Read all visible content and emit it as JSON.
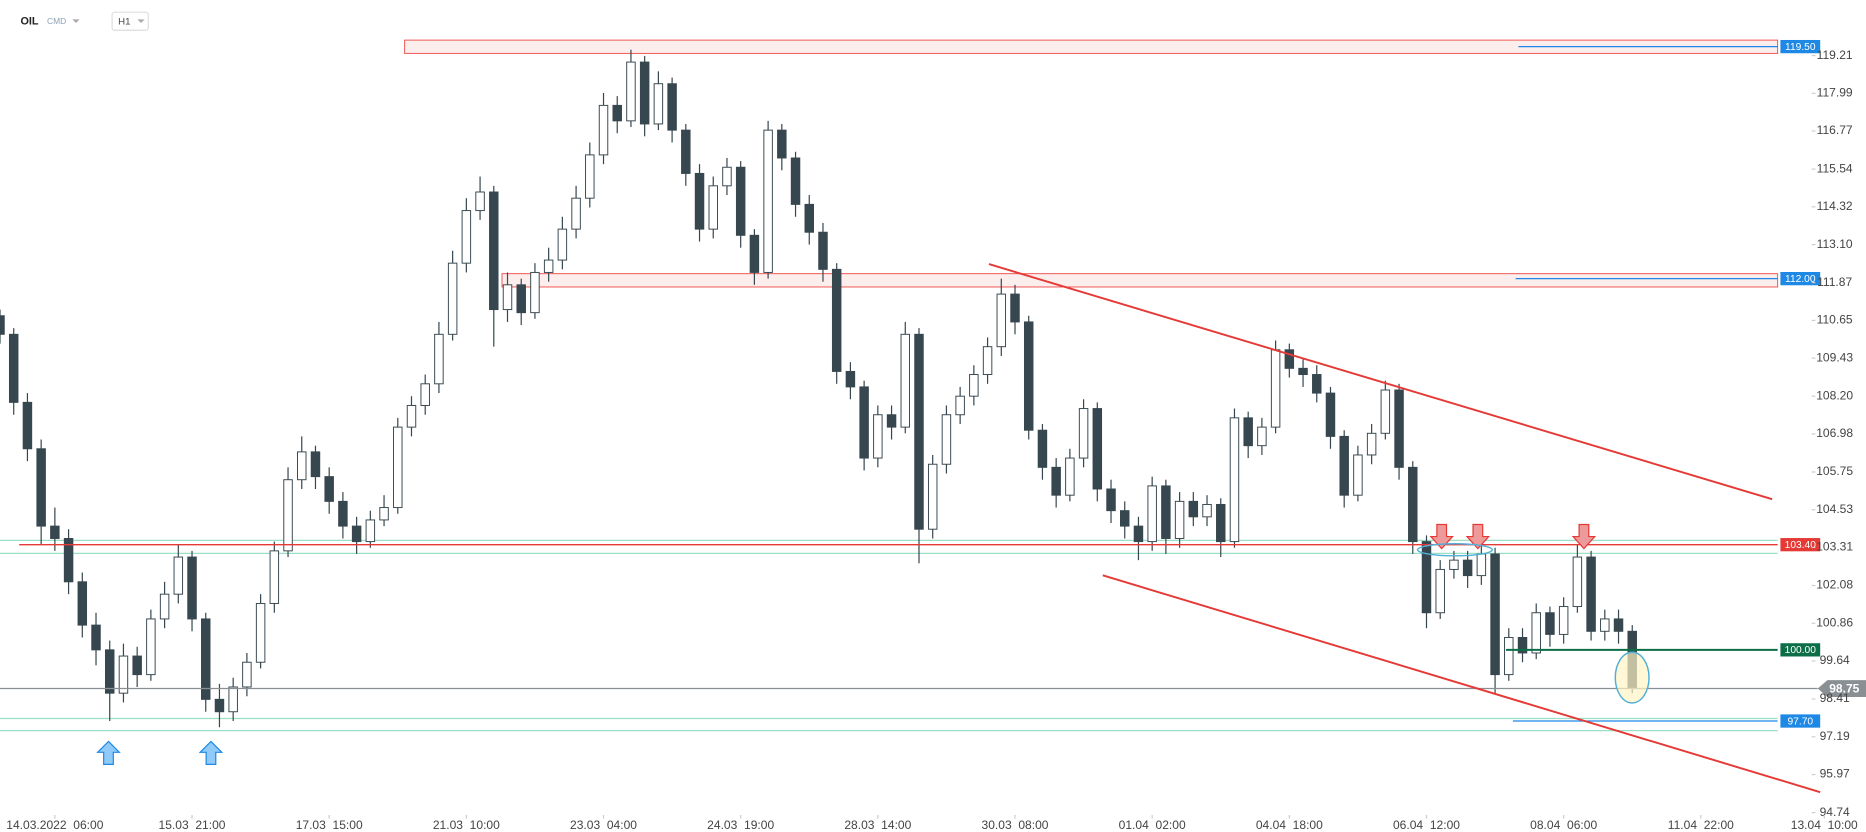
{
  "header": {
    "symbol": "OIL",
    "market": "CMD",
    "interval": "H1"
  },
  "chart_data": {
    "type": "candlestick",
    "open": [
      110.8,
      110.2,
      108.0,
      106.5,
      104.0,
      103.6,
      102.2,
      100.8,
      100.0,
      98.6,
      99.8,
      99.2,
      101.0,
      101.8,
      103.0,
      101.0,
      98.4,
      98.0,
      98.8,
      99.6,
      101.5,
      103.2,
      105.5,
      106.4,
      105.6,
      104.8,
      104.0,
      103.5,
      104.2,
      104.6,
      107.2,
      107.9,
      108.6,
      110.2,
      112.5,
      114.2,
      114.8,
      111.0,
      111.8,
      110.9,
      112.2,
      112.6,
      113.6,
      114.6,
      116.0,
      117.6,
      117.1,
      119.0,
      117.0,
      118.3,
      116.8,
      115.4,
      113.6,
      115.0,
      115.6,
      113.4,
      112.2,
      116.8,
      115.9,
      114.4,
      113.5,
      112.3,
      109.0,
      108.5,
      106.2,
      107.6,
      107.2,
      110.2,
      103.9,
      106.0,
      107.6,
      108.2,
      108.9,
      109.8,
      111.5,
      110.6,
      107.1,
      105.9,
      105.0,
      106.2,
      107.8,
      105.2,
      104.5,
      104.0,
      103.5,
      105.3,
      103.6,
      104.8,
      104.3,
      104.7,
      103.5,
      107.5,
      106.6,
      107.2,
      109.7,
      109.1,
      108.9,
      108.3,
      106.9,
      105.0,
      106.3,
      107.0,
      108.4,
      105.9,
      103.5,
      101.2,
      102.6,
      102.9,
      102.4,
      103.1,
      99.2,
      100.4,
      99.9,
      101.2,
      100.5,
      101.4,
      103.0,
      100.6,
      101.0,
      100.6
    ],
    "high": [
      111.0,
      110.4,
      108.3,
      106.8,
      104.6,
      103.9,
      102.5,
      101.2,
      100.3,
      100.2,
      100.1,
      101.3,
      102.2,
      103.4,
      103.2,
      101.2,
      98.9,
      99.1,
      99.9,
      101.8,
      103.5,
      105.9,
      106.9,
      106.6,
      105.9,
      105.1,
      104.3,
      104.5,
      105.0,
      107.5,
      108.2,
      108.9,
      110.6,
      112.9,
      114.6,
      115.3,
      115.0,
      112.2,
      112.0,
      112.5,
      113.0,
      114.0,
      115.0,
      116.4,
      118.0,
      117.9,
      119.4,
      119.2,
      118.7,
      118.5,
      117.0,
      115.7,
      115.3,
      115.9,
      115.8,
      113.6,
      117.1,
      117.0,
      116.1,
      114.7,
      113.8,
      112.5,
      109.3,
      108.7,
      107.9,
      107.9,
      110.6,
      110.4,
      106.3,
      107.9,
      108.5,
      109.2,
      110.1,
      112.0,
      111.8,
      110.8,
      107.3,
      106.2,
      106.5,
      108.1,
      108.0,
      105.5,
      104.8,
      104.3,
      105.6,
      105.5,
      105.1,
      105.1,
      105.0,
      104.9,
      107.8,
      107.7,
      107.5,
      110.0,
      109.9,
      109.4,
      109.2,
      108.5,
      107.1,
      106.6,
      107.3,
      108.7,
      108.6,
      106.1,
      103.7,
      102.9,
      103.2,
      103.2,
      103.4,
      103.3,
      100.7,
      100.7,
      101.5,
      101.4,
      101.7,
      103.4,
      103.2,
      101.3,
      101.3,
      100.8
    ],
    "low": [
      109.9,
      107.6,
      106.1,
      103.4,
      103.2,
      101.8,
      100.4,
      99.5,
      97.7,
      98.3,
      98.8,
      99.0,
      100.7,
      101.5,
      100.6,
      98.0,
      97.5,
      97.7,
      98.5,
      99.4,
      101.2,
      103.0,
      105.2,
      105.2,
      104.4,
      103.6,
      103.1,
      103.3,
      104.0,
      104.4,
      106.9,
      107.6,
      108.3,
      110.0,
      112.2,
      113.9,
      109.8,
      110.6,
      110.5,
      110.7,
      111.9,
      112.3,
      113.3,
      114.3,
      115.7,
      116.7,
      116.9,
      116.6,
      116.8,
      116.4,
      115.0,
      113.2,
      113.3,
      114.7,
      113.0,
      111.8,
      112.0,
      115.5,
      114.0,
      113.1,
      111.9,
      108.6,
      108.1,
      105.8,
      105.9,
      106.8,
      107.0,
      102.8,
      103.6,
      105.7,
      107.3,
      107.9,
      108.6,
      109.5,
      110.2,
      106.8,
      105.5,
      104.6,
      104.8,
      105.9,
      104.8,
      104.1,
      103.6,
      102.9,
      103.2,
      103.1,
      103.3,
      104.0,
      104.0,
      103.0,
      103.3,
      106.2,
      106.3,
      107.0,
      108.8,
      108.5,
      108.0,
      106.5,
      104.6,
      104.8,
      106.0,
      106.8,
      105.5,
      103.1,
      100.7,
      101.0,
      102.3,
      102.0,
      102.1,
      98.6,
      99.0,
      99.6,
      99.7,
      100.1,
      100.2,
      101.2,
      100.3,
      100.3,
      100.2,
      98.6
    ],
    "close": [
      110.2,
      108.0,
      106.5,
      104.0,
      103.6,
      102.2,
      100.8,
      100.0,
      98.6,
      99.8,
      99.2,
      101.0,
      101.8,
      103.0,
      101.0,
      98.4,
      98.0,
      98.8,
      99.6,
      101.5,
      103.2,
      105.5,
      106.4,
      105.6,
      104.8,
      104.0,
      103.5,
      104.2,
      104.6,
      107.2,
      107.9,
      108.6,
      110.2,
      112.5,
      114.2,
      114.8,
      111.0,
      111.8,
      110.9,
      112.2,
      112.6,
      113.6,
      114.6,
      116.0,
      117.6,
      117.1,
      119.0,
      117.0,
      118.3,
      116.8,
      115.4,
      113.6,
      115.0,
      115.6,
      113.4,
      112.2,
      116.8,
      115.9,
      114.4,
      113.5,
      112.3,
      109.0,
      108.5,
      106.2,
      107.6,
      107.2,
      110.2,
      103.9,
      106.0,
      107.6,
      108.2,
      108.9,
      109.8,
      111.5,
      110.6,
      107.1,
      105.9,
      105.0,
      106.2,
      107.8,
      105.2,
      104.5,
      104.0,
      103.5,
      105.3,
      103.6,
      104.8,
      104.3,
      104.7,
      103.5,
      107.5,
      106.6,
      107.2,
      109.7,
      109.1,
      108.9,
      108.3,
      106.9,
      105.0,
      106.3,
      107.0,
      108.4,
      105.9,
      103.5,
      101.2,
      102.6,
      102.9,
      102.4,
      103.1,
      99.2,
      100.4,
      99.9,
      101.2,
      100.5,
      101.4,
      103.0,
      100.6,
      101.0,
      100.6,
      98.75
    ],
    "up_color": "#ffffff",
    "down_color": "#37474f",
    "edge_color": "#37474f",
    "xlim": [
      0,
      132
    ],
    "xticks": [
      {
        "value": 4,
        "label": "14.03.2022  06:00"
      },
      {
        "value": 14,
        "label": "15.03  21:00"
      },
      {
        "value": 24,
        "label": "17.03  15:00"
      },
      {
        "value": 34,
        "label": "21.03  10:00"
      },
      {
        "value": 44,
        "label": "23.03  04:00"
      },
      {
        "value": 54,
        "label": "24.03  19:00"
      },
      {
        "value": 64,
        "label": "28.03  14:00"
      },
      {
        "value": 74,
        "label": "30.03  08:00"
      },
      {
        "value": 84,
        "label": "01.04  02:00"
      },
      {
        "value": 94,
        "label": "04.04  18:00"
      },
      {
        "value": 104,
        "label": "06.04  12:00"
      },
      {
        "value": 114,
        "label": "08.04  06:00"
      },
      {
        "value": 124,
        "label": "11.04  22:00"
      },
      {
        "value": 133,
        "label": "13.04  10:00"
      }
    ],
    "ylim": [
      94.74,
      119.21
    ],
    "yticks": [
      119.21,
      117.99,
      116.77,
      115.54,
      114.32,
      {
        "value": 113.1,
        "label": "113.10"
      },
      111.87,
      110.65,
      109.43,
      {
        "value": 108.2,
        "label": "108.20"
      },
      106.98,
      105.75,
      104.53,
      103.31,
      102.08,
      100.86,
      99.64,
      98.41,
      97.19,
      95.97,
      94.74
    ],
    "zones": [
      {
        "y": [
          119.28,
          119.71
        ],
        "x": [
          29.5,
          129.6
        ],
        "color": "#ef5350",
        "fill": "#fdeaea"
      },
      {
        "y": [
          111.73,
          112.16
        ],
        "x": [
          36.6,
          129.6
        ],
        "color": "#ef5350",
        "fill": "#fdeaea"
      },
      {
        "y": [
          103.12,
          103.54
        ],
        "x": [
          0,
          129.6
        ],
        "color": "#9be0c4"
      },
      {
        "y": [
          97.39,
          97.78
        ],
        "x": [
          0,
          129.6
        ],
        "color": "#9be0c4"
      }
    ],
    "levels": [
      {
        "value": 119.5,
        "label": "119.50",
        "x": [
          110.7,
          129.6
        ],
        "color": "#1e88e5"
      },
      {
        "value": 112.0,
        "label": "112.00",
        "x": [
          110.5,
          129.6
        ],
        "color": "#1e88e5"
      },
      {
        "value": 103.4,
        "label": "103.40",
        "x": [
          1.4,
          129.6
        ],
        "color": "#e53935"
      },
      {
        "value": 100.0,
        "label": "100.00",
        "x": [
          109.8,
          129.6
        ],
        "color": "#0b6e47"
      },
      {
        "value": 97.7,
        "label": "97.70",
        "x": [
          110.3,
          129.6
        ],
        "color": "#1e88e5"
      }
    ],
    "last_price": {
      "value": 98.75,
      "label": "98.75",
      "color": "#8a8f93"
    },
    "trendlines": [
      {
        "x": [
          72.1,
          129.2
        ],
        "y": [
          112.47,
          104.87
        ],
        "color": "#e53935"
      },
      {
        "x": [
          80.4,
          132.7
        ],
        "y": [
          102.41,
          95.4
        ],
        "color": "#e53935"
      }
    ]
  }
}
